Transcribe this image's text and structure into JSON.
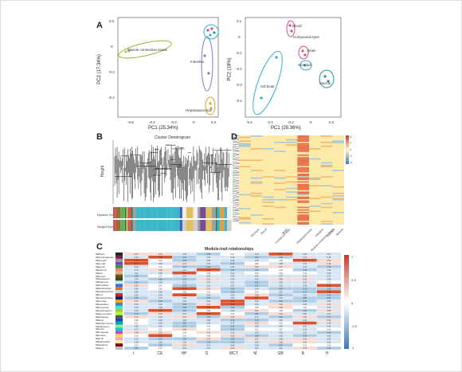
{
  "panels": {
    "a": {
      "label": "A",
      "left": {
        "xlabel": "PC1 (25.34%)",
        "ylabel": "PC2 (17.34%)",
        "xticks": [
          "-0.6",
          "-0.4",
          "-0.2",
          "0",
          "0.2"
        ],
        "yticks": [
          "0.2",
          "0",
          "-0.2",
          "-0.4"
        ],
        "groups": [
          "Muscle connective tissue",
          "Intestine",
          "Hepatopancreas"
        ]
      },
      "right": {
        "xlabel": "PC1 (29.36%)",
        "ylabel": "PC2 (18%)",
        "xticks": [
          "-0.6",
          "-0.4",
          "-0.2",
          "0",
          "0.2"
        ],
        "yticks": [
          "0.1",
          "0",
          "-0.1",
          "-0.2",
          "-0.3",
          "-0.4"
        ],
        "groups": [
          "Blood",
          "Compound eyes",
          "Brain",
          "Stomach",
          "Gill book",
          "Muscle"
        ]
      }
    },
    "b": {
      "label": "B",
      "title": "Cluster Dendrogram",
      "ylabel": "Height",
      "row_labels": [
        "Dynamic Tree Cut",
        "Merged Dynamic"
      ]
    },
    "d": {
      "label": "D",
      "columns": [
        "Gill book",
        "Blood",
        "Compound eyes",
        "Brain",
        "Hepatopancreas",
        "Muscle connective tissue",
        "Intestine",
        "Stomach",
        "Muscle"
      ],
      "scale": [
        "4",
        "2",
        "0",
        "-2",
        "-4"
      ]
    },
    "c": {
      "label": "C",
      "title": "Module-trait relationships",
      "traits": [
        "I",
        "CE",
        "HP",
        "S",
        "MCT",
        "M",
        "GB",
        "B",
        "H"
      ],
      "scale": [
        "1",
        "0.5",
        "0",
        "-0.5",
        "-1"
      ],
      "modules": [
        "MEblack",
        "MEdarkmagenta",
        "MEgrey60",
        "MEpurple",
        "MEgreen",
        "MEsalmon",
        "MEtan",
        "MEbrown",
        "MEdarkgreen",
        "MElightcyan",
        "MEroyalblue",
        "MEdarkorange",
        "MEpaleturquoise",
        "MEred",
        "MEmidnightblue",
        "MEorange",
        "MEsteelblue",
        "MEturquoise",
        "MEyellowgreen",
        "MEgreenyellow",
        "MEdarkgrey",
        "MEblue",
        "MEdarkturquoise",
        "MElightgreen",
        "MEcyan",
        "MEmagenta",
        "MEyellow",
        "MEpink",
        "MElightyellow",
        "MEdarkred",
        "MEgrey"
      ]
    }
  },
  "colors": {
    "green_group": "#9bb52e",
    "purple_group": "#7b7bbd",
    "orange_group": "#d7a22a",
    "cyan_group": "#2bb1c8",
    "pink_group": "#d44a8f",
    "teal_group": "#1a9c8c",
    "red": "#c83a2a",
    "blue": "#3a78b8"
  }
}
